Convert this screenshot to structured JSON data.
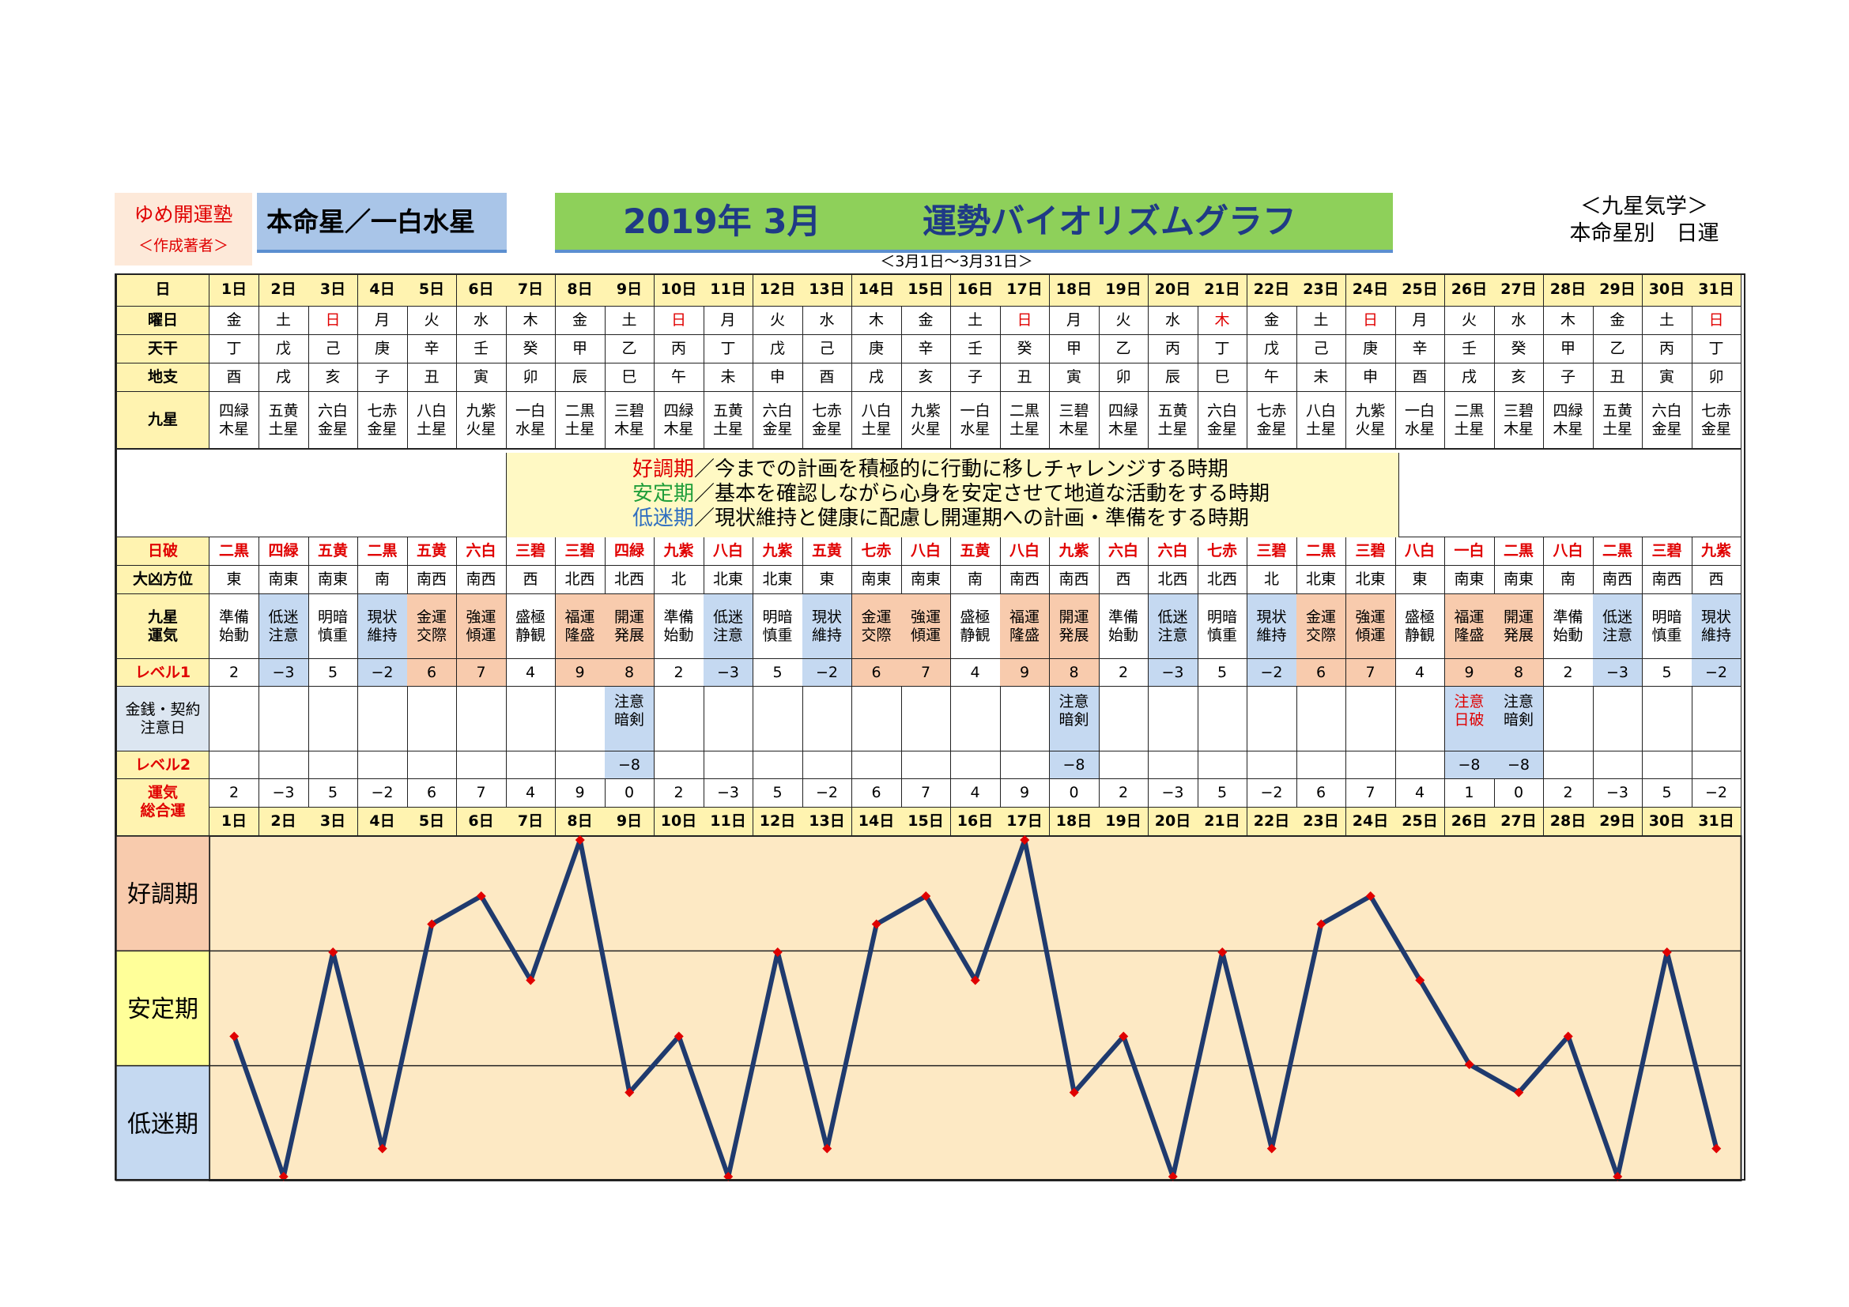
{
  "header": {
    "school_name": "ゆめ開運塾",
    "school_sub": "＜作成著者＞",
    "honmei": "本命星／一白水星",
    "title_year": "2019年 3月",
    "title_main": "運勢バイオリズムグラフ",
    "period": "＜3月1日～3月31日＞",
    "kyusei": "＜九星気学＞",
    "kyusei_sub": "本命星別　日運"
  },
  "row_labels": {
    "day": "日",
    "weekday": "曜日",
    "tenkan": "天干",
    "chishi": "地支",
    "kyusei": "九星",
    "nippa": "日破",
    "daikyo": "大凶方位",
    "unki": "九星\n運気",
    "level1": "レベル1",
    "kinsen": "金銭・契約\n注意日",
    "level2": "レベル2",
    "sogo": "運気\n総合運"
  },
  "legend": [
    {
      "key": "好調期",
      "text": "／今までの計画を積極的に行動に移しチャレンジする時期",
      "color": "#e00000"
    },
    {
      "key": "安定期",
      "text": "／基本を確認しながら心身を安定させて地道な活動をする時期",
      "color": "#1f9e3a"
    },
    {
      "key": "低迷期",
      "text": "／現状維持と健康に配慮し開運期への計画・準備をする時期",
      "color": "#2f6fc0"
    }
  ],
  "zones": [
    {
      "label": "好調期",
      "color": "#f8cbad"
    },
    {
      "label": "安定期",
      "color": "#ffff99"
    },
    {
      "label": "低迷期",
      "color": "#c5d9f1"
    }
  ],
  "colors": {
    "label_bg": "#fff3b0",
    "good": "#f8cbad",
    "low": "#c5d9f1",
    "kinsen_label_bg": "#dce6f1",
    "plot_bg": "#fde9c4",
    "line": "#1f3a6e",
    "marker": "#e00000"
  },
  "days": [
    {
      "day": "1日",
      "wd": "金",
      "wd_red": false,
      "tk": "丁",
      "cs": "酉",
      "ks": "四緑\n木星",
      "np": "二黒",
      "dk": "東",
      "un": "準備\n始動",
      "l1": "2",
      "kn": "",
      "kn_red": false,
      "l2": "",
      "sg": "2"
    },
    {
      "day": "2日",
      "wd": "土",
      "wd_red": false,
      "tk": "戊",
      "cs": "戌",
      "ks": "五黄\n土星",
      "np": "四緑",
      "dk": "南東",
      "un": "低迷\n注意",
      "l1": "−3",
      "kn": "",
      "kn_red": false,
      "l2": "",
      "sg": "−3"
    },
    {
      "day": "3日",
      "wd": "日",
      "wd_red": true,
      "tk": "己",
      "cs": "亥",
      "ks": "六白\n金星",
      "np": "五黄",
      "dk": "南東",
      "un": "明暗\n慎重",
      "l1": "5",
      "kn": "",
      "kn_red": false,
      "l2": "",
      "sg": "5"
    },
    {
      "day": "4日",
      "wd": "月",
      "wd_red": false,
      "tk": "庚",
      "cs": "子",
      "ks": "七赤\n金星",
      "np": "二黒",
      "dk": "南",
      "un": "現状\n維持",
      "l1": "−2",
      "kn": "",
      "kn_red": false,
      "l2": "",
      "sg": "−2"
    },
    {
      "day": "5日",
      "wd": "火",
      "wd_red": false,
      "tk": "辛",
      "cs": "丑",
      "ks": "八白\n土星",
      "np": "五黄",
      "dk": "南西",
      "un": "金運\n交際",
      "l1": "6",
      "kn": "",
      "kn_red": false,
      "l2": "",
      "sg": "6"
    },
    {
      "day": "6日",
      "wd": "水",
      "wd_red": false,
      "tk": "壬",
      "cs": "寅",
      "ks": "九紫\n火星",
      "np": "六白",
      "dk": "南西",
      "un": "強運\n傾運",
      "l1": "7",
      "kn": "",
      "kn_red": false,
      "l2": "",
      "sg": "7"
    },
    {
      "day": "7日",
      "wd": "木",
      "wd_red": false,
      "tk": "癸",
      "cs": "卯",
      "ks": "一白\n水星",
      "np": "三碧",
      "dk": "西",
      "un": "盛極\n静観",
      "l1": "4",
      "kn": "",
      "kn_red": false,
      "l2": "",
      "sg": "4"
    },
    {
      "day": "8日",
      "wd": "金",
      "wd_red": false,
      "tk": "甲",
      "cs": "辰",
      "ks": "二黒\n土星",
      "np": "三碧",
      "dk": "北西",
      "un": "福運\n隆盛",
      "l1": "9",
      "kn": "",
      "kn_red": false,
      "l2": "",
      "sg": "9"
    },
    {
      "day": "9日",
      "wd": "土",
      "wd_red": false,
      "tk": "乙",
      "cs": "巳",
      "ks": "三碧\n木星",
      "np": "四緑",
      "dk": "北西",
      "un": "開運\n発展",
      "l1": "8",
      "kn": "注意\n暗剣",
      "kn_red": false,
      "l2": "−8",
      "sg": "0"
    },
    {
      "day": "10日",
      "wd": "日",
      "wd_red": true,
      "tk": "丙",
      "cs": "午",
      "ks": "四緑\n木星",
      "np": "九紫",
      "dk": "北",
      "un": "準備\n始動",
      "l1": "2",
      "kn": "",
      "kn_red": false,
      "l2": "",
      "sg": "2"
    },
    {
      "day": "11日",
      "wd": "月",
      "wd_red": false,
      "tk": "丁",
      "cs": "未",
      "ks": "五黄\n土星",
      "np": "八白",
      "dk": "北東",
      "un": "低迷\n注意",
      "l1": "−3",
      "kn": "",
      "kn_red": false,
      "l2": "",
      "sg": "−3"
    },
    {
      "day": "12日",
      "wd": "火",
      "wd_red": false,
      "tk": "戊",
      "cs": "申",
      "ks": "六白\n金星",
      "np": "九紫",
      "dk": "北東",
      "un": "明暗\n慎重",
      "l1": "5",
      "kn": "",
      "kn_red": false,
      "l2": "",
      "sg": "5"
    },
    {
      "day": "13日",
      "wd": "水",
      "wd_red": false,
      "tk": "己",
      "cs": "酉",
      "ks": "七赤\n金星",
      "np": "五黄",
      "dk": "東",
      "un": "現状\n維持",
      "l1": "−2",
      "kn": "",
      "kn_red": false,
      "l2": "",
      "sg": "−2"
    },
    {
      "day": "14日",
      "wd": "木",
      "wd_red": false,
      "tk": "庚",
      "cs": "戌",
      "ks": "八白\n土星",
      "np": "七赤",
      "dk": "南東",
      "un": "金運\n交際",
      "l1": "6",
      "kn": "",
      "kn_red": false,
      "l2": "",
      "sg": "6"
    },
    {
      "day": "15日",
      "wd": "金",
      "wd_red": false,
      "tk": "辛",
      "cs": "亥",
      "ks": "九紫\n火星",
      "np": "八白",
      "dk": "南東",
      "un": "強運\n傾運",
      "l1": "7",
      "kn": "",
      "kn_red": false,
      "l2": "",
      "sg": "7"
    },
    {
      "day": "16日",
      "wd": "土",
      "wd_red": false,
      "tk": "壬",
      "cs": "子",
      "ks": "一白\n水星",
      "np": "五黄",
      "dk": "南",
      "un": "盛極\n静観",
      "l1": "4",
      "kn": "",
      "kn_red": false,
      "l2": "",
      "sg": "4"
    },
    {
      "day": "17日",
      "wd": "日",
      "wd_red": true,
      "tk": "癸",
      "cs": "丑",
      "ks": "二黒\n土星",
      "np": "八白",
      "dk": "南西",
      "un": "福運\n隆盛",
      "l1": "9",
      "kn": "",
      "kn_red": false,
      "l2": "",
      "sg": "9"
    },
    {
      "day": "18日",
      "wd": "月",
      "wd_red": false,
      "tk": "甲",
      "cs": "寅",
      "ks": "三碧\n木星",
      "np": "九紫",
      "dk": "南西",
      "un": "開運\n発展",
      "l1": "8",
      "kn": "注意\n暗剣",
      "kn_red": false,
      "l2": "−8",
      "sg": "0"
    },
    {
      "day": "19日",
      "wd": "火",
      "wd_red": false,
      "tk": "乙",
      "cs": "卯",
      "ks": "四緑\n木星",
      "np": "六白",
      "dk": "西",
      "un": "準備\n始動",
      "l1": "2",
      "kn": "",
      "kn_red": false,
      "l2": "",
      "sg": "2"
    },
    {
      "day": "20日",
      "wd": "水",
      "wd_red": false,
      "tk": "丙",
      "cs": "辰",
      "ks": "五黄\n土星",
      "np": "六白",
      "dk": "北西",
      "un": "低迷\n注意",
      "l1": "−3",
      "kn": "",
      "kn_red": false,
      "l2": "",
      "sg": "−3"
    },
    {
      "day": "21日",
      "wd": "木",
      "wd_red": true,
      "tk": "丁",
      "cs": "巳",
      "ks": "六白\n金星",
      "np": "七赤",
      "dk": "北西",
      "un": "明暗\n慎重",
      "l1": "5",
      "kn": "",
      "kn_red": false,
      "l2": "",
      "sg": "5"
    },
    {
      "day": "22日",
      "wd": "金",
      "wd_red": false,
      "tk": "戊",
      "cs": "午",
      "ks": "七赤\n金星",
      "np": "三碧",
      "dk": "北",
      "un": "現状\n維持",
      "l1": "−2",
      "kn": "",
      "kn_red": false,
      "l2": "",
      "sg": "−2"
    },
    {
      "day": "23日",
      "wd": "土",
      "wd_red": false,
      "tk": "己",
      "cs": "未",
      "ks": "八白\n土星",
      "np": "二黒",
      "dk": "北東",
      "un": "金運\n交際",
      "l1": "6",
      "kn": "",
      "kn_red": false,
      "l2": "",
      "sg": "6"
    },
    {
      "day": "24日",
      "wd": "日",
      "wd_red": true,
      "tk": "庚",
      "cs": "申",
      "ks": "九紫\n火星",
      "np": "三碧",
      "dk": "北東",
      "un": "強運\n傾運",
      "l1": "7",
      "kn": "",
      "kn_red": false,
      "l2": "",
      "sg": "7"
    },
    {
      "day": "25日",
      "wd": "月",
      "wd_red": false,
      "tk": "辛",
      "cs": "酉",
      "ks": "一白\n水星",
      "np": "八白",
      "dk": "東",
      "un": "盛極\n静観",
      "l1": "4",
      "kn": "",
      "kn_red": false,
      "l2": "",
      "sg": "4"
    },
    {
      "day": "26日",
      "wd": "火",
      "wd_red": false,
      "tk": "壬",
      "cs": "戌",
      "ks": "二黒\n土星",
      "np": "一白",
      "dk": "南東",
      "un": "福運\n隆盛",
      "l1": "9",
      "kn": "注意\n日破",
      "kn_red": true,
      "l2": "−8",
      "sg": "1"
    },
    {
      "day": "27日",
      "wd": "水",
      "wd_red": false,
      "tk": "癸",
      "cs": "亥",
      "ks": "三碧\n木星",
      "np": "二黒",
      "dk": "南東",
      "un": "開運\n発展",
      "l1": "8",
      "kn": "注意\n暗剣",
      "kn_red": false,
      "l2": "−8",
      "sg": "0"
    },
    {
      "day": "28日",
      "wd": "木",
      "wd_red": false,
      "tk": "甲",
      "cs": "子",
      "ks": "四緑\n木星",
      "np": "八白",
      "dk": "南",
      "un": "準備\n始動",
      "l1": "2",
      "kn": "",
      "kn_red": false,
      "l2": "",
      "sg": "2"
    },
    {
      "day": "29日",
      "wd": "金",
      "wd_red": false,
      "tk": "乙",
      "cs": "丑",
      "ks": "五黄\n土星",
      "np": "二黒",
      "dk": "南西",
      "un": "低迷\n注意",
      "l1": "−3",
      "kn": "",
      "kn_red": false,
      "l2": "",
      "sg": "−3"
    },
    {
      "day": "30日",
      "wd": "土",
      "wd_red": false,
      "tk": "丙",
      "cs": "寅",
      "ks": "六白\n金星",
      "np": "三碧",
      "dk": "南西",
      "un": "明暗\n慎重",
      "l1": "5",
      "kn": "",
      "kn_red": false,
      "l2": "",
      "sg": "5"
    },
    {
      "day": "31日",
      "wd": "日",
      "wd_red": true,
      "tk": "丁",
      "cs": "卯",
      "ks": "七赤\n金星",
      "np": "九紫",
      "dk": "西",
      "un": "現状\n維持",
      "l1": "−2",
      "kn": "",
      "kn_red": false,
      "l2": "",
      "sg": "−2"
    }
  ],
  "chart_data": {
    "type": "line",
    "title": "",
    "xlabel": "",
    "ylabel": "",
    "x": [
      "1日",
      "2日",
      "3日",
      "4日",
      "5日",
      "6日",
      "7日",
      "8日",
      "9日",
      "10日",
      "11日",
      "12日",
      "13日",
      "14日",
      "15日",
      "16日",
      "17日",
      "18日",
      "19日",
      "20日",
      "21日",
      "22日",
      "23日",
      "24日",
      "25日",
      "26日",
      "27日",
      "28日",
      "29日",
      "30日",
      "31日"
    ],
    "series": [
      {
        "values": [
          2,
          -3,
          5,
          -2,
          6,
          7,
          4,
          9,
          0,
          2,
          -3,
          5,
          -2,
          6,
          7,
          4,
          9,
          0,
          2,
          -3,
          5,
          -2,
          6,
          7,
          4,
          1,
          0,
          2,
          -3,
          5,
          -2
        ]
      }
    ],
    "ylim": [
      -3,
      9
    ],
    "bands": [
      "好調期",
      "安定期",
      "低迷期"
    ],
    "grid": false,
    "legend": "none"
  }
}
